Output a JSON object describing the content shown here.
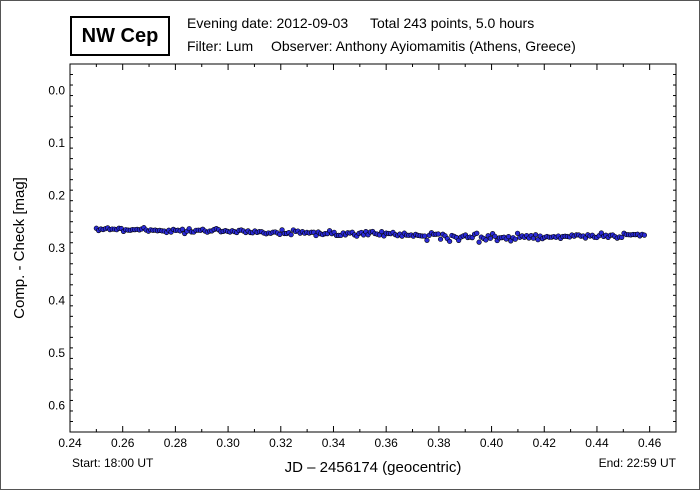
{
  "header": {
    "star_name": "NW Cep",
    "evening_date": "Evening date: 2012-09-03",
    "total": "Total 243 points, 5.0 hours",
    "filter": "Filter: Lum",
    "observer": "Observer: Anthony Ayiomamitis (Athens, Greece)"
  },
  "footer": {
    "start": "Start: 18:00 UT",
    "end": "End: 22:59 UT"
  },
  "colors": {
    "marker_fill": "#2a2ad6",
    "marker_edge": "#000000"
  },
  "chart_data": {
    "type": "scatter",
    "title": "",
    "xlabel": "JD – 2456174  (geocentric)",
    "ylabel": "Comp. - Check [mag]",
    "xlim": [
      0.24,
      0.47
    ],
    "ylim": [
      0.65,
      -0.05
    ],
    "y_inverted": true,
    "grid": false,
    "xticks": [
      "0.24",
      "0.26",
      "0.28",
      "0.30",
      "0.32",
      "0.34",
      "0.36",
      "0.38",
      "0.40",
      "0.42",
      "0.44",
      "0.46"
    ],
    "yticks": [
      "0.0",
      "0.1",
      "0.2",
      "0.3",
      "0.4",
      "0.5",
      "0.6"
    ],
    "n_points": 243,
    "x_range": [
      0.25,
      0.458
    ],
    "trend": [
      [
        0.25,
        0.262
      ],
      [
        0.265,
        0.266
      ],
      [
        0.29,
        0.267
      ],
      [
        0.32,
        0.27
      ],
      [
        0.35,
        0.273
      ],
      [
        0.375,
        0.276
      ],
      [
        0.39,
        0.281
      ],
      [
        0.41,
        0.279
      ],
      [
        0.43,
        0.277
      ],
      [
        0.458,
        0.276
      ]
    ],
    "scatter_amplitude": [
      [
        0.25,
        0.005
      ],
      [
        0.375,
        0.004
      ],
      [
        0.376,
        0.009
      ],
      [
        0.405,
        0.008
      ],
      [
        0.42,
        0.004
      ],
      [
        0.458,
        0.004
      ]
    ]
  }
}
